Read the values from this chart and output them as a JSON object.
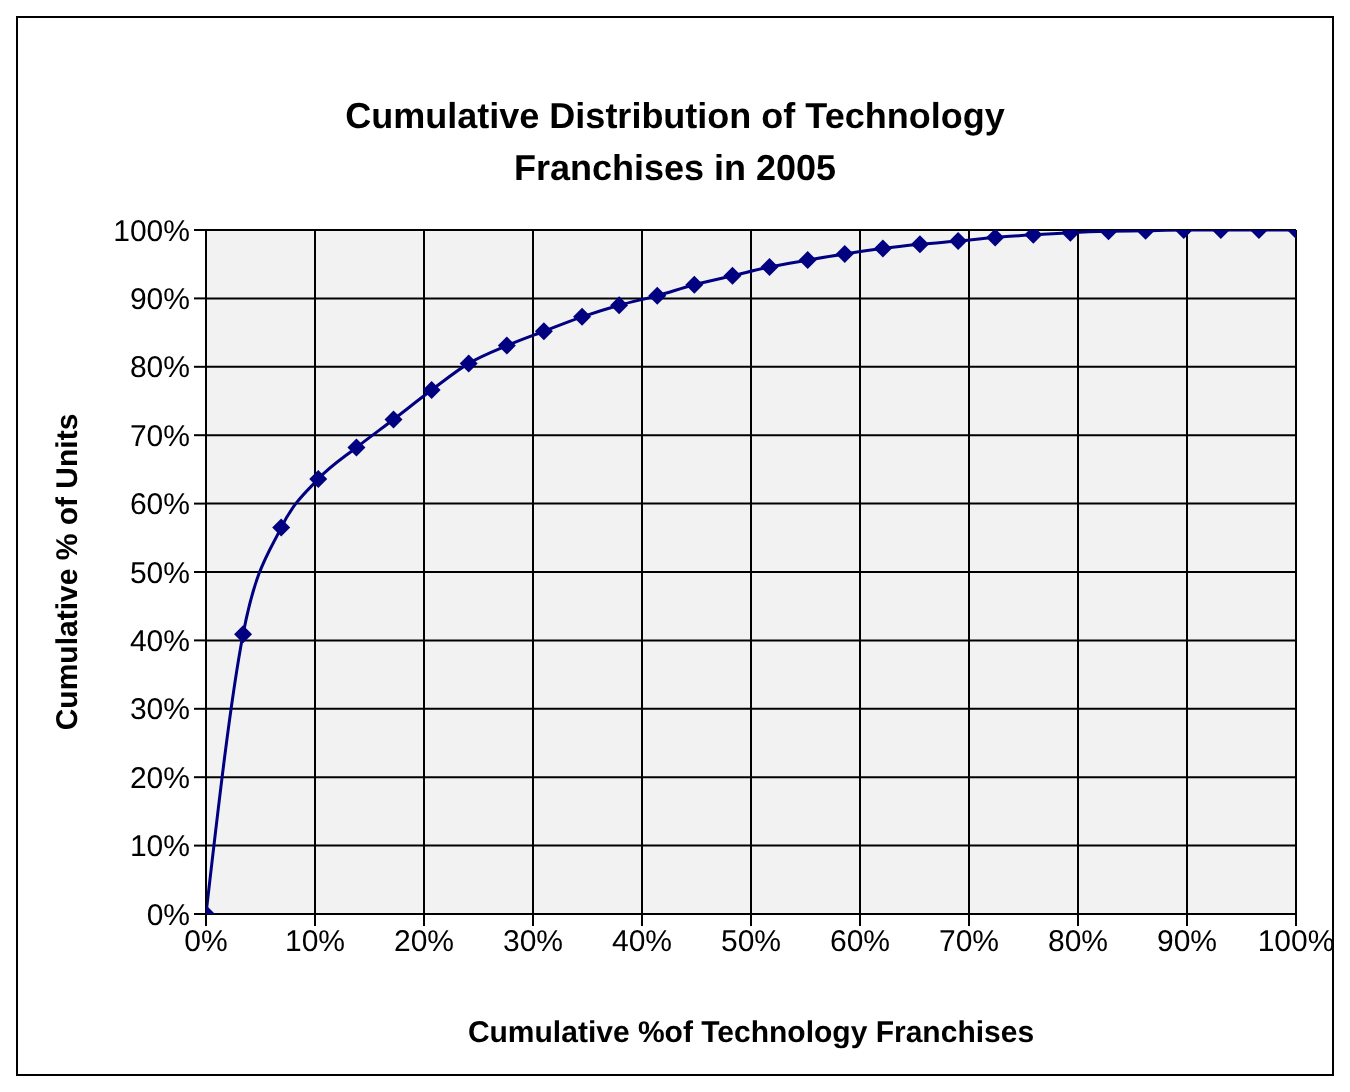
{
  "chart_data": {
    "type": "line",
    "title": "Cumulative Distribution of Technology Franchises in 2005",
    "xlabel": "Cumulative %of Technology Franchises",
    "ylabel": "Cumulative % of Units",
    "x": [
      0,
      3.4,
      6.9,
      10.3,
      13.8,
      17.2,
      20.7,
      24.1,
      27.6,
      31.0,
      34.5,
      37.9,
      41.4,
      44.8,
      48.3,
      51.7,
      55.2,
      58.6,
      62.1,
      65.5,
      69.0,
      72.4,
      75.9,
      79.3,
      82.8,
      86.2,
      89.7,
      93.1,
      96.6,
      100
    ],
    "series": [
      {
        "color": "#000080",
        "values": [
          0,
          40.9,
          56.5,
          63.6,
          68.2,
          72.3,
          76.6,
          80.5,
          83.1,
          85.2,
          87.3,
          89.0,
          90.4,
          92.0,
          93.3,
          94.6,
          95.6,
          96.5,
          97.3,
          97.9,
          98.4,
          98.9,
          99.3,
          99.6,
          99.8,
          99.9,
          100,
          100,
          100,
          100
        ]
      }
    ],
    "xlim": [
      0,
      100
    ],
    "xticks": [
      {
        "value": 0,
        "label": "0%"
      },
      {
        "value": 10,
        "label": "10%"
      },
      {
        "value": 20,
        "label": "20%"
      },
      {
        "value": 30,
        "label": "30%"
      },
      {
        "value": 40,
        "label": "40%"
      },
      {
        "value": 50,
        "label": "50%"
      },
      {
        "value": 60,
        "label": "60%"
      },
      {
        "value": 70,
        "label": "70%"
      },
      {
        "value": 80,
        "label": "80%"
      },
      {
        "value": 90,
        "label": "90%"
      },
      {
        "value": 100,
        "label": "100%"
      }
    ],
    "ylim": [
      0,
      100
    ],
    "yticks": [
      {
        "value": 0,
        "label": "0%"
      },
      {
        "value": 10,
        "label": "10%"
      },
      {
        "value": 20,
        "label": "20%"
      },
      {
        "value": 30,
        "label": "30%"
      },
      {
        "value": 40,
        "label": "40%"
      },
      {
        "value": 50,
        "label": "50%"
      },
      {
        "value": 60,
        "label": "60%"
      },
      {
        "value": 70,
        "label": "70%"
      },
      {
        "value": 80,
        "label": "80%"
      },
      {
        "value": 90,
        "label": "90%"
      },
      {
        "value": 100,
        "label": "100%"
      }
    ],
    "grid": true,
    "marker": "diamond",
    "line_style": "solid",
    "legend": false
  }
}
